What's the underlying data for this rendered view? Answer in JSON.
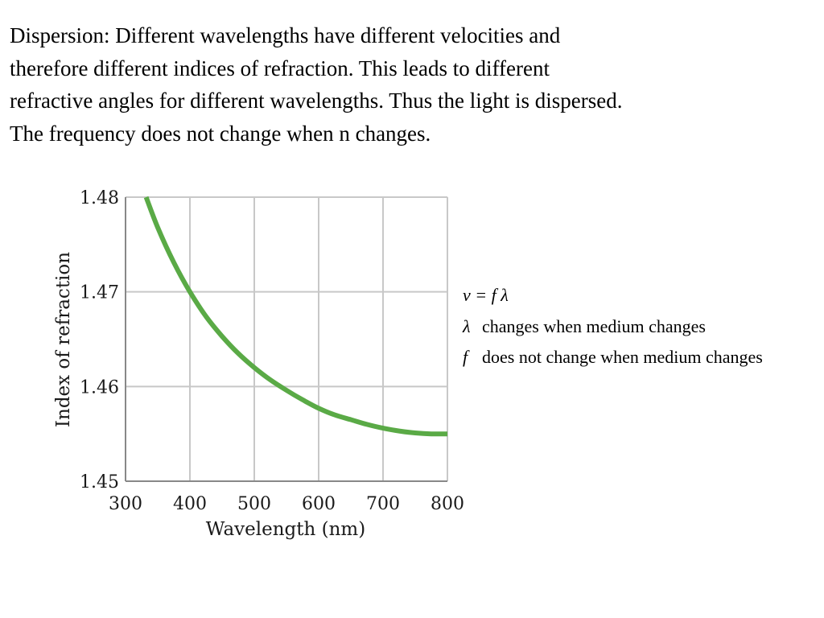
{
  "paragraph": {
    "lines": [
      "Dispersion: Different wavelengths have different velocities and",
      "therefore different indices of refraction. This leads to different",
      "refractive angles for different wavelengths. Thus the light is dispersed.",
      "The frequency does not change when n changes."
    ]
  },
  "notes": {
    "equation": "v = f λ",
    "lambda_symbol": "λ",
    "lambda_text": "changes when medium changes",
    "f_symbol": "f",
    "f_text": "does not change when medium changes"
  },
  "colors": {
    "curve": "#5aaa46",
    "grid": "#c8c8c8",
    "axis": "#888888"
  },
  "chart_data": {
    "type": "line",
    "title": "",
    "xlabel": "Wavelength (nm)",
    "ylabel": "Index of refraction",
    "xlim": [
      300,
      800
    ],
    "ylim": [
      1.45,
      1.48
    ],
    "xticks": [
      "300",
      "400",
      "500",
      "600",
      "700",
      "800"
    ],
    "yticks": [
      "1.45",
      "1.46",
      "1.47",
      "1.48"
    ],
    "grid": true,
    "series": [
      {
        "x": [
          332,
          350,
          375,
          400,
          425,
          450,
          475,
          500,
          525,
          550,
          575,
          600,
          625,
          650,
          675,
          700,
          725,
          750,
          775,
          800
        ],
        "y": [
          1.48,
          1.4768,
          1.4731,
          1.47,
          1.4674,
          1.4653,
          1.4635,
          1.462,
          1.4607,
          1.4596,
          1.4586,
          1.4577,
          1.457,
          1.4565,
          1.456,
          1.4556,
          1.4553,
          1.4551,
          1.455,
          1.455
        ]
      }
    ]
  }
}
